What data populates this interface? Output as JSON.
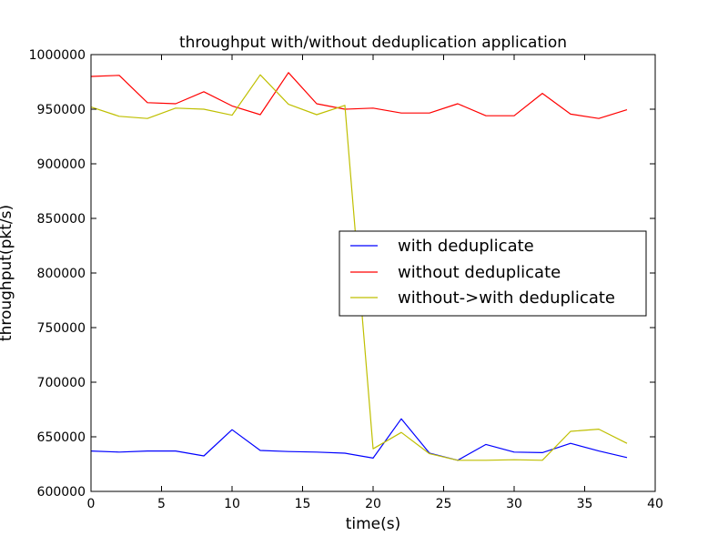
{
  "chart_data": {
    "type": "line",
    "title": "throughput with/without deduplication application",
    "xlabel": "time(s)",
    "ylabel": "throughput(pkt/s)",
    "xlim": [
      0,
      40
    ],
    "ylim": [
      600000,
      1000000
    ],
    "xticks": [
      0,
      5,
      10,
      15,
      20,
      25,
      30,
      35,
      40
    ],
    "yticks": [
      600000,
      650000,
      700000,
      750000,
      800000,
      850000,
      900000,
      950000,
      1000000
    ],
    "xtick_labels": [
      "0",
      "5",
      "10",
      "15",
      "20",
      "25",
      "30",
      "35",
      "40"
    ],
    "ytick_labels": [
      "600000",
      "650000",
      "700000",
      "750000",
      "800000",
      "850000",
      "900000",
      "950000",
      "1000000"
    ],
    "grid": false,
    "legend_position": "center-right",
    "x": [
      0,
      2,
      4,
      6,
      8,
      10,
      12,
      14,
      16,
      18,
      20,
      22,
      24,
      26,
      28,
      30,
      32,
      34,
      36,
      38
    ],
    "series": [
      {
        "name": "with deduplicate",
        "color": "#0000ff",
        "values": [
          637000,
          636000,
          637000,
          637000,
          632500,
          656500,
          637500,
          636500,
          636000,
          635000,
          630500,
          666500,
          635000,
          628500,
          643000,
          636000,
          635500,
          644000,
          637000,
          631000
        ]
      },
      {
        "name": "without deduplicate",
        "color": "#ff0000",
        "values": [
          980000,
          981000,
          956000,
          955000,
          966000,
          953000,
          945000,
          983500,
          955000,
          950000,
          951000,
          946500,
          946500,
          955000,
          944000,
          944000,
          964500,
          945500,
          941500,
          949500
        ]
      },
      {
        "name": "without->with deduplicate",
        "color": "#bfbf00",
        "values": [
          952000,
          943500,
          941500,
          951000,
          950000,
          944500,
          981500,
          954500,
          945000,
          953500,
          639000,
          654000,
          634500,
          628500,
          628500,
          629000,
          628500,
          655000,
          657000,
          644000
        ]
      }
    ]
  }
}
